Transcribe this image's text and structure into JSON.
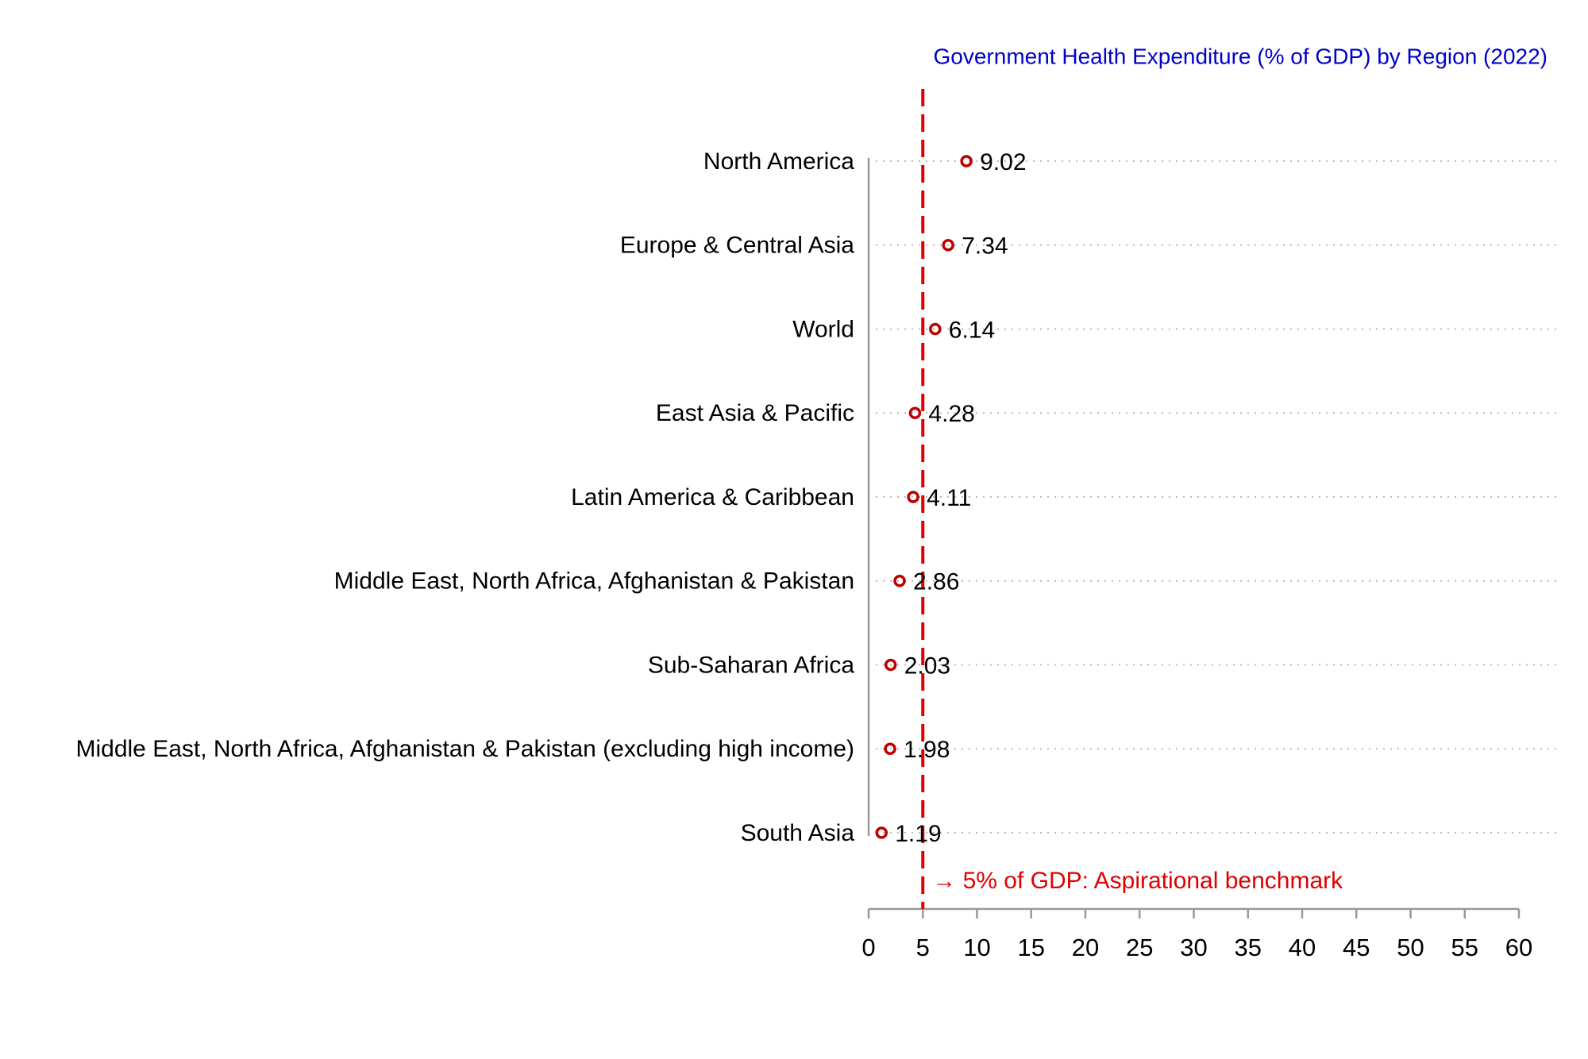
{
  "chart_data": {
    "type": "dot",
    "title": "Government Health Expenditure (% of GDP) by Region (2022)",
    "title_color": "#0000cc",
    "categories": [
      "North America",
      "Europe & Central Asia",
      "World",
      "East Asia & Pacific",
      "Latin America & Caribbean",
      "Middle East, North Africa, Afghanistan & Pakistan",
      "Sub-Saharan Africa",
      "Middle East, North Africa, Afghanistan & Pakistan (excluding high income)",
      "South Asia"
    ],
    "values": [
      9.02,
      7.34,
      6.14,
      4.28,
      4.11,
      2.86,
      2.03,
      1.98,
      1.19
    ],
    "color": "#c00000",
    "xlim": [
      0,
      60
    ],
    "xticks": [
      0,
      5,
      10,
      15,
      20,
      25,
      30,
      35,
      40,
      45,
      50,
      55,
      60
    ],
    "grid": true,
    "benchmark": {
      "value": 5,
      "label": "→ 5% of GDP: Aspirational benchmark",
      "color": "#e00000"
    }
  }
}
